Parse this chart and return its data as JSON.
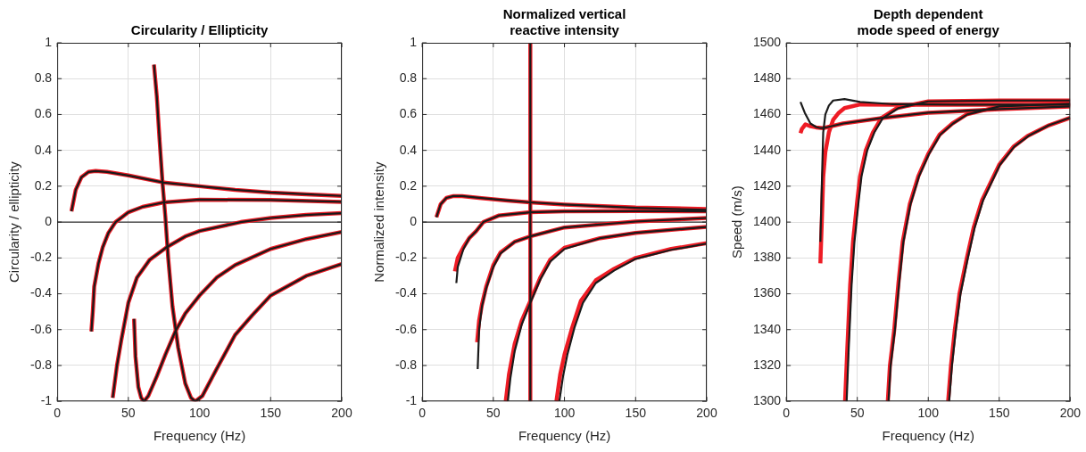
{
  "chart_data": [
    {
      "type": "line",
      "title": "Circularity / Ellipticity",
      "xlabel": "Frequency (Hz)",
      "ylabel": "Circularity / ellipticity",
      "xlim": [
        0,
        200
      ],
      "xticks": [
        0,
        50,
        100,
        150,
        200
      ],
      "ylim": [
        -1,
        1
      ],
      "yticks": [
        -1,
        -0.8,
        -0.6,
        -0.4,
        -0.2,
        0,
        0.2,
        0.4,
        0.6,
        0.8,
        1
      ],
      "grid": true,
      "ref_lines": [
        {
          "axis": "y",
          "value": 0,
          "color": "#000000"
        }
      ],
      "series": [
        {
          "color": "#ee1c25",
          "x": [
            10,
            13,
            17,
            22,
            27,
            35,
            50,
            75,
            100,
            125,
            150,
            175,
            200
          ],
          "values": [
            0.06,
            0.18,
            0.25,
            0.28,
            0.285,
            0.28,
            0.26,
            0.22,
            0.2,
            0.18,
            0.165,
            0.155,
            0.146
          ]
        },
        {
          "color": "#ee1c25",
          "x": [
            24,
            25,
            26,
            29,
            32,
            36,
            41,
            50,
            60,
            75,
            100,
            150,
            200
          ],
          "values": [
            -0.61,
            -0.5,
            -0.36,
            -0.23,
            -0.14,
            -0.06,
            0,
            0.055,
            0.085,
            0.11,
            0.125,
            0.123,
            0.113
          ]
        },
        {
          "color": "#ee1c25",
          "x": [
            39,
            42,
            45,
            50,
            56,
            65,
            77,
            90,
            100,
            129,
            150,
            175,
            200
          ],
          "values": [
            -0.98,
            -0.8,
            -0.66,
            -0.45,
            -0.31,
            -0.21,
            -0.14,
            -0.08,
            -0.05,
            0,
            0.023,
            0.04,
            0.05
          ]
        },
        {
          "color": "#ee1c25",
          "x": [
            54,
            55,
            57,
            59,
            61,
            64,
            70,
            76,
            83,
            90,
            100,
            112,
            125,
            150,
            175,
            200
          ],
          "values": [
            -0.54,
            -0.75,
            -0.92,
            -0.98,
            -1,
            -0.97,
            -0.86,
            -0.74,
            -0.61,
            -0.51,
            -0.41,
            -0.31,
            -0.24,
            -0.15,
            -0.095,
            -0.055
          ]
        },
        {
          "color": "#ee1c25",
          "x": [
            68,
            70,
            72,
            74,
            76,
            78,
            81,
            85,
            90,
            94,
            97,
            102,
            112,
            125,
            137,
            150,
            175,
            200
          ],
          "values": [
            0.878,
            0.7,
            0.45,
            0.22,
            0.03,
            -0.2,
            -0.47,
            -0.7,
            -0.9,
            -0.98,
            -1,
            -0.97,
            -0.82,
            -0.63,
            -0.52,
            -0.41,
            -0.3,
            -0.234
          ]
        },
        {
          "color": "#1a1a1a",
          "x": [
            10,
            13,
            17,
            22,
            27,
            35,
            50,
            75,
            100,
            125,
            150,
            175,
            200
          ],
          "values": [
            0.06,
            0.18,
            0.25,
            0.28,
            0.285,
            0.28,
            0.26,
            0.22,
            0.2,
            0.18,
            0.165,
            0.155,
            0.146
          ]
        },
        {
          "color": "#1a1a1a",
          "x": [
            24,
            25,
            26,
            29,
            32,
            36,
            41,
            50,
            60,
            75,
            100,
            150,
            200
          ],
          "values": [
            -0.61,
            -0.5,
            -0.36,
            -0.23,
            -0.14,
            -0.06,
            0,
            0.055,
            0.085,
            0.11,
            0.125,
            0.123,
            0.113
          ]
        },
        {
          "color": "#1a1a1a",
          "x": [
            39,
            42,
            45,
            50,
            56,
            65,
            77,
            90,
            100,
            129,
            150,
            175,
            200
          ],
          "values": [
            -0.98,
            -0.8,
            -0.66,
            -0.45,
            -0.31,
            -0.21,
            -0.14,
            -0.08,
            -0.05,
            0,
            0.023,
            0.04,
            0.05
          ]
        },
        {
          "color": "#1a1a1a",
          "x": [
            54,
            55,
            57,
            59,
            61,
            64,
            70,
            76,
            83,
            90,
            100,
            112,
            125,
            150,
            175,
            200
          ],
          "values": [
            -0.54,
            -0.75,
            -0.92,
            -0.98,
            -1,
            -0.97,
            -0.86,
            -0.74,
            -0.61,
            -0.51,
            -0.41,
            -0.31,
            -0.24,
            -0.15,
            -0.095,
            -0.055
          ]
        },
        {
          "color": "#1a1a1a",
          "x": [
            68,
            70,
            72,
            74,
            76,
            78,
            81,
            85,
            90,
            94,
            97,
            102,
            112,
            125,
            137,
            150,
            175,
            200
          ],
          "values": [
            0.878,
            0.7,
            0.45,
            0.22,
            0.03,
            -0.2,
            -0.47,
            -0.7,
            -0.9,
            -0.98,
            -1,
            -0.97,
            -0.82,
            -0.63,
            -0.52,
            -0.41,
            -0.3,
            -0.234
          ]
        }
      ]
    },
    {
      "type": "line",
      "title": "Normalized vertical\nreactive intensity",
      "xlabel": "Frequency (Hz)",
      "ylabel": "Normalized intensity",
      "xlim": [
        0,
        200
      ],
      "xticks": [
        0,
        50,
        100,
        150,
        200
      ],
      "ylim": [
        -1,
        1
      ],
      "yticks": [
        -1,
        -0.8,
        -0.6,
        -0.4,
        -0.2,
        0,
        0.2,
        0.4,
        0.6,
        0.8,
        1
      ],
      "grid": true,
      "ref_lines": [
        {
          "axis": "y",
          "value": 0,
          "color": "#000000"
        }
      ],
      "series": [
        {
          "color": "#ee1c25",
          "x": [
            10,
            13,
            17,
            22,
            28,
            40,
            60,
            76,
            100,
            150,
            200
          ],
          "values": [
            0.027,
            0.1,
            0.135,
            0.145,
            0.145,
            0.135,
            0.12,
            0.11,
            0.098,
            0.081,
            0.073
          ]
        },
        {
          "color": "#ee1c25",
          "x": [
            23,
            25,
            29,
            33,
            38,
            43,
            54,
            76,
            100,
            150,
            200
          ],
          "values": [
            -0.275,
            -0.2,
            -0.14,
            -0.09,
            -0.05,
            0,
            0.037,
            0.055,
            0.06,
            0.061,
            0.06
          ]
        },
        {
          "color": "#ee1c25",
          "x": [
            38.6,
            40,
            42,
            45,
            50,
            55,
            65,
            76,
            100,
            150,
            200
          ],
          "values": [
            -0.67,
            -0.55,
            -0.46,
            -0.36,
            -0.24,
            -0.17,
            -0.11,
            -0.08,
            -0.03,
            0.003,
            0.023
          ]
        },
        {
          "color": "#ee1c25",
          "x": [
            58.7,
            61,
            65,
            70,
            76,
            83,
            90,
            100,
            125,
            150,
            200
          ],
          "values": [
            -1,
            -0.85,
            -0.68,
            -0.55,
            -0.44,
            -0.31,
            -0.21,
            -0.143,
            -0.09,
            -0.06,
            -0.027
          ]
        },
        {
          "color": "#ee1c25",
          "x": [
            94.3,
            97,
            100,
            105,
            111.5,
            122,
            135,
            150,
            175,
            200
          ],
          "values": [
            -1,
            -0.85,
            -0.74,
            -0.6,
            -0.44,
            -0.325,
            -0.26,
            -0.2,
            -0.15,
            -0.118
          ]
        },
        {
          "color": "#ee1c25",
          "x": [
            76,
            76
          ],
          "values": [
            -1,
            1
          ]
        },
        {
          "color": "#1a1a1a",
          "x": [
            10,
            13,
            17,
            22,
            28,
            40,
            60,
            76,
            100,
            150,
            200
          ],
          "values": [
            0.027,
            0.1,
            0.135,
            0.145,
            0.145,
            0.135,
            0.12,
            0.11,
            0.098,
            0.079,
            0.068
          ]
        },
        {
          "color": "#1a1a1a",
          "x": [
            24,
            25,
            29,
            33,
            38,
            43,
            54,
            76,
            100,
            150,
            200
          ],
          "values": [
            -0.34,
            -0.25,
            -0.15,
            -0.09,
            -0.05,
            0,
            0.037,
            0.055,
            0.06,
            0.061,
            0.06
          ]
        },
        {
          "color": "#1a1a1a",
          "x": [
            39,
            40,
            42,
            45,
            50,
            55,
            65,
            76,
            100,
            150,
            200
          ],
          "values": [
            -0.82,
            -0.6,
            -0.47,
            -0.37,
            -0.25,
            -0.175,
            -0.11,
            -0.08,
            -0.03,
            0.003,
            0.023
          ]
        },
        {
          "color": "#1a1a1a",
          "x": [
            60.2,
            62,
            65,
            70,
            76,
            83,
            90,
            100,
            125,
            150,
            200
          ],
          "values": [
            -1,
            -0.87,
            -0.72,
            -0.57,
            -0.45,
            -0.32,
            -0.22,
            -0.15,
            -0.09,
            -0.06,
            -0.027
          ]
        },
        {
          "color": "#1a1a1a",
          "x": [
            96.4,
            99,
            102,
            107,
            113,
            122,
            135,
            150,
            175,
            200
          ],
          "values": [
            -1,
            -0.86,
            -0.74,
            -0.59,
            -0.45,
            -0.34,
            -0.27,
            -0.205,
            -0.155,
            -0.12
          ]
        },
        {
          "color": "#1a1a1a",
          "x": [
            76,
            76
          ],
          "values": [
            -1,
            1
          ]
        }
      ]
    },
    {
      "type": "line",
      "title": "Depth dependent\nmode speed of energy",
      "xlabel": "Frequency (Hz)",
      "ylabel": "Speed (m/s)",
      "xlim": [
        0,
        200
      ],
      "xticks": [
        0,
        50,
        100,
        150,
        200
      ],
      "ylim": [
        1300,
        1500
      ],
      "yticks": [
        1300,
        1320,
        1340,
        1360,
        1380,
        1400,
        1420,
        1440,
        1460,
        1480,
        1500
      ],
      "grid": true,
      "series": [
        {
          "color": "#ee1c25",
          "x": [
            10,
            11,
            13.5,
            17,
            21,
            26,
            40,
            67,
            100,
            150,
            200
          ],
          "values": [
            1449.6,
            1452,
            1454.5,
            1453.5,
            1452.8,
            1452.4,
            1455,
            1458,
            1461,
            1463,
            1464.5
          ]
        },
        {
          "color": "#ee1c25",
          "x": [
            24,
            25,
            26,
            27.5,
            30,
            33,
            37,
            41,
            52,
            80,
            120,
            200
          ],
          "values": [
            1377,
            1400,
            1425,
            1439,
            1450,
            1457,
            1461,
            1463.6,
            1465.6,
            1465.5,
            1465.5,
            1465.5
          ]
        },
        {
          "color": "#ee1c25",
          "x": [
            41.4,
            43,
            45,
            47,
            50,
            52,
            56,
            61,
            67,
            78,
            100,
            150,
            200
          ],
          "values": [
            1300,
            1330,
            1365,
            1389,
            1412,
            1425.6,
            1440,
            1450,
            1458,
            1463.6,
            1467.3,
            1467.8,
            1467.8
          ]
        },
        {
          "color": "#ee1c25",
          "x": [
            71.5,
            73,
            76,
            79,
            82,
            87,
            93,
            100,
            108,
            117,
            127,
            150,
            200
          ],
          "values": [
            1300,
            1320,
            1339.7,
            1366,
            1389,
            1410,
            1425.6,
            1438,
            1448.8,
            1455,
            1460,
            1464.5,
            1466
          ]
        },
        {
          "color": "#ee1c25",
          "x": [
            114,
            116,
            118.7,
            122,
            127,
            132,
            138,
            150,
            160,
            170,
            185,
            200
          ],
          "values": [
            1300,
            1320,
            1339.7,
            1360,
            1379.3,
            1397,
            1412.4,
            1432,
            1442,
            1448,
            1454,
            1458.2
          ]
        },
        {
          "color": "#1a1a1a",
          "x": [
            10,
            13,
            17,
            21,
            24,
            26,
            40,
            67,
            100,
            150,
            200
          ],
          "values": [
            1467,
            1461,
            1455,
            1453,
            1452.4,
            1452.4,
            1455,
            1458,
            1461,
            1463,
            1464.5
          ]
        },
        {
          "color": "#1a1a1a",
          "x": [
            24,
            25,
            26,
            27.5,
            30,
            33,
            41,
            52,
            74,
            120,
            200
          ],
          "values": [
            1389,
            1420,
            1450,
            1460,
            1465,
            1467.8,
            1468.6,
            1467,
            1465.8,
            1465.5,
            1465.5
          ]
        },
        {
          "color": "#1a1a1a",
          "x": [
            42.5,
            44,
            46,
            48,
            51,
            53,
            57,
            62,
            68,
            79,
            100,
            150,
            200
          ],
          "values": [
            1300,
            1330,
            1365,
            1389,
            1412,
            1425.6,
            1440,
            1450,
            1458,
            1463.6,
            1467.3,
            1467.8,
            1467.8
          ]
        },
        {
          "color": "#1a1a1a",
          "x": [
            72,
            73.5,
            76.5,
            79.5,
            82.5,
            87.5,
            93.5,
            100.5,
            108.5,
            117.5,
            127.5,
            150,
            200
          ],
          "values": [
            1300,
            1320,
            1339.7,
            1366,
            1389,
            1410,
            1425.6,
            1438,
            1448.8,
            1455,
            1460,
            1464.5,
            1466
          ]
        },
        {
          "color": "#1a1a1a",
          "x": [
            114.7,
            116.7,
            119.4,
            122.7,
            127.7,
            132.7,
            138.7,
            150.5,
            160.5,
            170.5,
            185,
            200
          ],
          "values": [
            1300,
            1320,
            1339.7,
            1360,
            1379.3,
            1397,
            1412.4,
            1432,
            1442,
            1448,
            1454,
            1458.2
          ]
        }
      ]
    }
  ]
}
